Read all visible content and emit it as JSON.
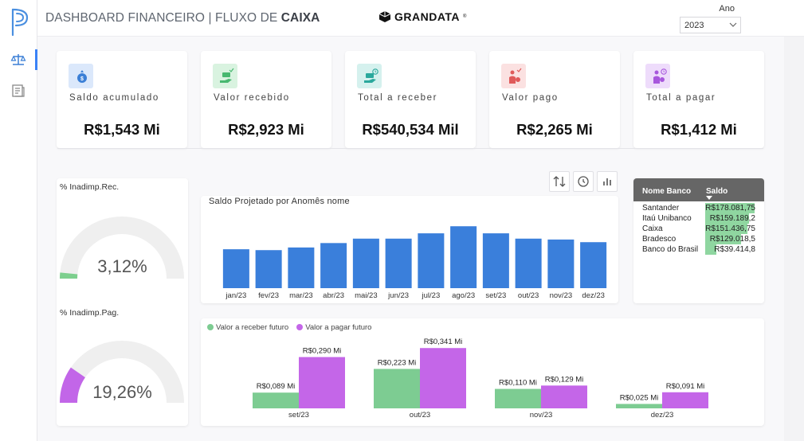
{
  "header": {
    "title_prefix": "DASHBOARD FINANCEIRO | FLUXO DE ",
    "title_bold": "CAIXA",
    "brand": "GRANDATA",
    "brand_mark": "®",
    "year_label": "Ano",
    "year_value": "2023"
  },
  "nav": {
    "items": [
      {
        "icon": "scale-icon",
        "active": true
      },
      {
        "icon": "report-icon",
        "active": false
      }
    ]
  },
  "kpis": [
    {
      "label": "Saldo acumulado",
      "value": "R$1,543 Mi",
      "icon": "money-bag-icon",
      "bg": "#dbe8fb",
      "fg": "#3b7fd6"
    },
    {
      "label": "Valor recebido",
      "value": "R$2,923 Mi",
      "icon": "hand-money-check-icon",
      "bg": "#d9f3e0",
      "fg": "#48b870"
    },
    {
      "label": "Total a receber",
      "value": "R$540,534 Mil",
      "icon": "hand-money-clock-icon",
      "bg": "#d5f1ee",
      "fg": "#2aa89c"
    },
    {
      "label": "Valor pago",
      "value": "R$2,265 Mi",
      "icon": "person-money-check-icon",
      "bg": "#fbe1e1",
      "fg": "#e05a5a"
    },
    {
      "label": "Total a pagar",
      "value": "R$1,412 Mi",
      "icon": "person-money-clock-icon",
      "bg": "#eedcfb",
      "fg": "#a857dd"
    }
  ],
  "gauges": [
    {
      "title": "% Inadimp.Rec.",
      "value_text": "3,12%",
      "value": 3.12,
      "max": 100,
      "color": "#7dcf8e"
    },
    {
      "title": "% Inadimp.Pag.",
      "value_text": "19,26%",
      "value": 19.26,
      "max": 100,
      "color": "#c266e8"
    }
  ],
  "colors": {
    "bar_blue": "#3a7fdb",
    "receive_green": "#7dcc92",
    "pay_purple": "#c466e8",
    "gauge_track": "#efefef"
  },
  "chart_data": [
    {
      "type": "bar",
      "title": "Saldo Projetado por Anomês nome",
      "categories": [
        "jan/23",
        "fev/23",
        "mar/23",
        "abr/23",
        "mai/23",
        "jun/23",
        "jul/23",
        "ago/23",
        "set/23",
        "out/23",
        "nov/23",
        "dez/23"
      ],
      "values": [
        44,
        43,
        46,
        51,
        56,
        56,
        62,
        70,
        62,
        56,
        55,
        52
      ],
      "ylim": [
        0,
        90
      ],
      "grid": false
    },
    {
      "type": "bar",
      "categories": [
        "set/23",
        "out/23",
        "nov/23",
        "dez/23"
      ],
      "series": [
        {
          "name": "Valor a receber futuro",
          "values": [
            0.089,
            0.223,
            0.11,
            0.025
          ],
          "labels": [
            "R$0,089 Mi",
            "R$0,223 Mi",
            "R$0,110 Mi",
            "R$0,025 Mi"
          ]
        },
        {
          "name": "Valor a pagar futuro",
          "values": [
            0.29,
            0.341,
            0.129,
            0.091
          ],
          "labels": [
            "R$0,290 Mi",
            "R$0,341 Mi",
            "R$0,129 Mi",
            "R$0,091 Mi"
          ]
        }
      ],
      "ylim": [
        0,
        0.36
      ],
      "legend": "top-left",
      "grid": false
    }
  ],
  "bank_table": {
    "headers": [
      "Nome Banco",
      "Saldo"
    ],
    "rows": [
      {
        "bank": "Santander",
        "balance": "R$178.081,75",
        "value": 178081.75
      },
      {
        "bank": "Itaú Unibanco",
        "balance": "R$159.189,2",
        "value": 159189.2
      },
      {
        "bank": "Caixa",
        "balance": "R$151.436,75",
        "value": 151436.75
      },
      {
        "bank": "Bradesco",
        "balance": "R$129.018,5",
        "value": 129018.5
      },
      {
        "bank": "Banco do Brasil",
        "balance": "R$39.414,8",
        "value": 39414.8
      }
    ],
    "bar_color": "#8fd6a0"
  }
}
